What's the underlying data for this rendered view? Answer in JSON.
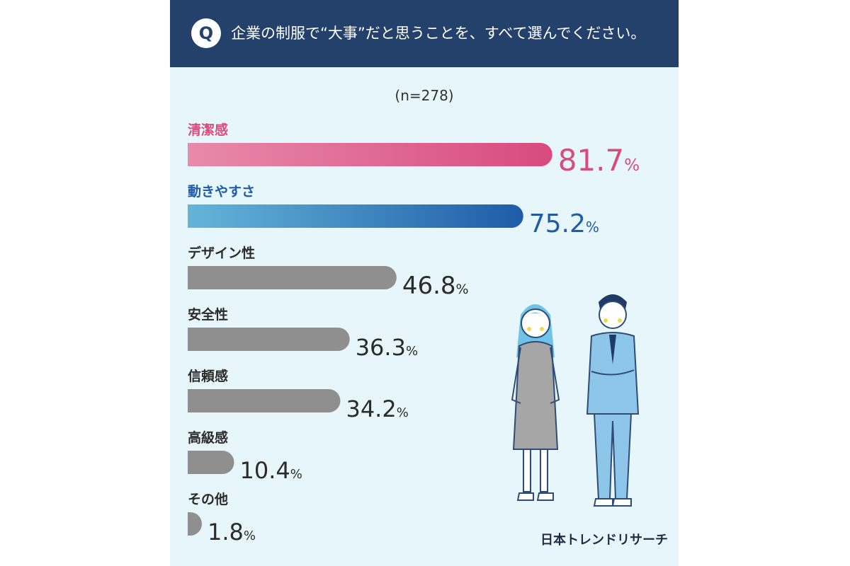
{
  "question": {
    "badge": "Q",
    "text": "企業の制服で“大事”だと思うことを、すべて選んでください。"
  },
  "sample": "(n=278)",
  "brand": "日本トレンドリサーチ",
  "colors": {
    "header": "#24416b",
    "background": "#e7f6fb",
    "pink_start": "#e88aaa",
    "pink_end": "#d84b7e",
    "blue_start": "#64b5d9",
    "blue_end": "#1f5ca8",
    "gray": "#8f8f8f",
    "text_dark": "#2b2b2b"
  },
  "chart_data": {
    "type": "bar",
    "orientation": "horizontal",
    "categories": [
      "清潔感",
      "動きやすさ",
      "デザイン性",
      "安全性",
      "信頼感",
      "高級感",
      "その他"
    ],
    "values": [
      81.7,
      75.2,
      46.8,
      36.3,
      34.2,
      10.4,
      1.8
    ],
    "value_labels": [
      "81.7",
      "75.2",
      "46.8",
      "36.3",
      "34.2",
      "10.4",
      "1.8"
    ],
    "unit": "%",
    "highlight": [
      "pink",
      "blue",
      "gray",
      "gray",
      "gray",
      "gray",
      "gray"
    ],
    "xlim": [
      0,
      100
    ],
    "grid": false,
    "legend": "none"
  }
}
